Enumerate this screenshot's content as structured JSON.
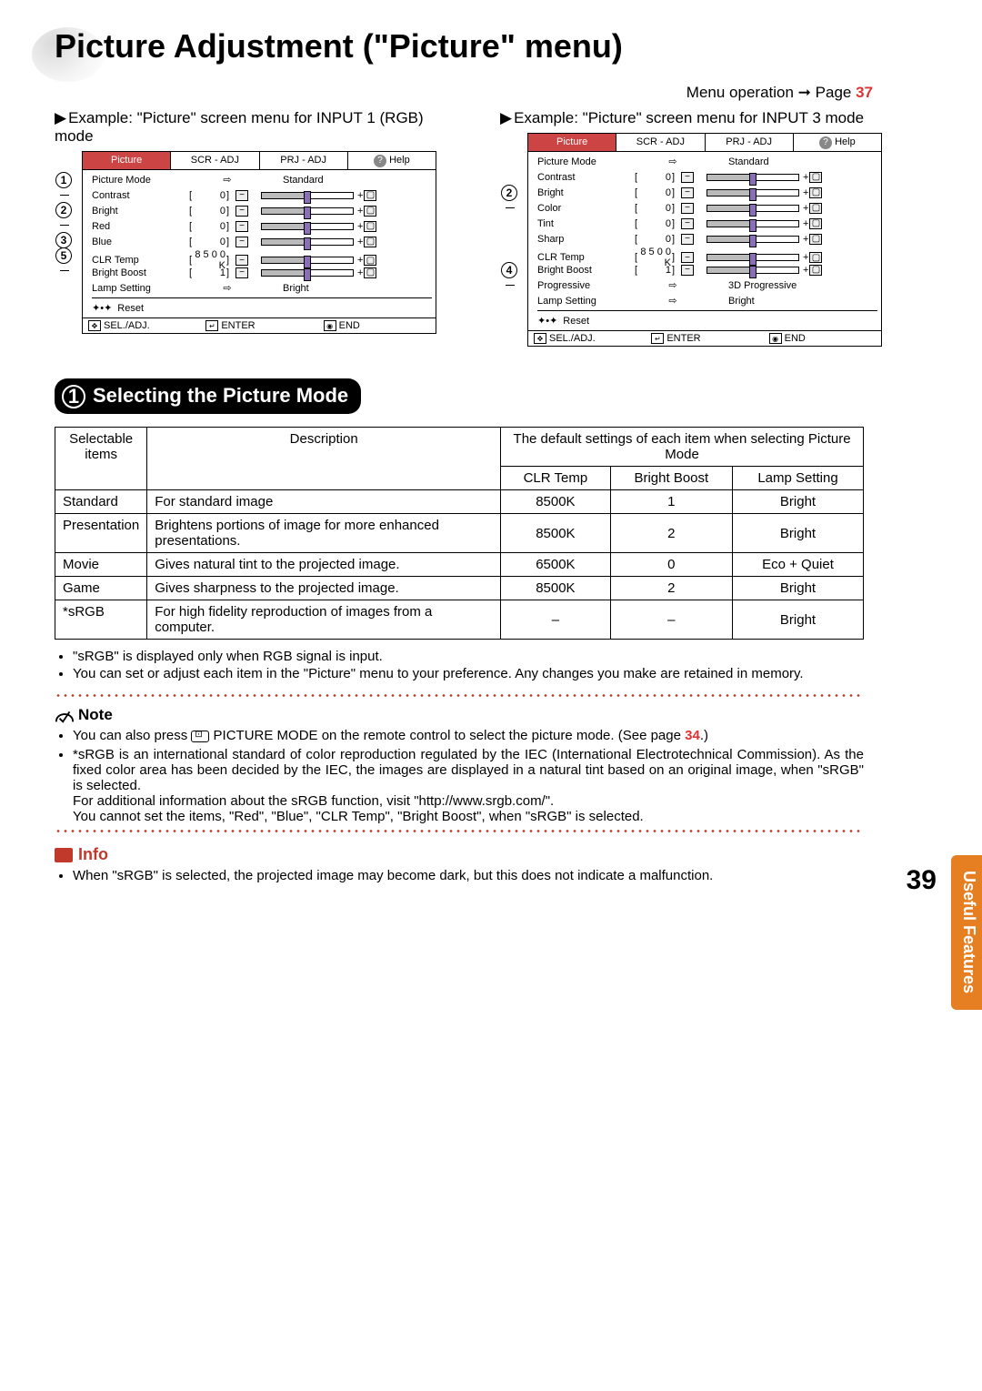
{
  "page": {
    "title": "Picture Adjustment (\"Picture\" menu)",
    "menu_op_prefix": "Menu operation ",
    "menu_op_arrow": "➞",
    "menu_op_page_label": " Page ",
    "menu_op_page_num": "37",
    "page_number": "39",
    "side_tab": "Useful Features"
  },
  "examples": {
    "left": {
      "heading": "Example:  \"Picture\" screen menu for INPUT 1 (RGB) mode",
      "callouts": [
        "1",
        "2",
        "3",
        "5"
      ],
      "tabs": {
        "active": "Picture",
        "t2": "SCR - ADJ",
        "t3": "PRJ - ADJ",
        "help": "Help"
      },
      "rows": [
        {
          "label": "Picture Mode",
          "type": "arrow",
          "value": "Standard"
        },
        {
          "label": "Contrast",
          "type": "slider",
          "val": "0"
        },
        {
          "label": "Bright",
          "type": "slider",
          "val": "0"
        },
        {
          "label": "Red",
          "type": "slider",
          "val": "0"
        },
        {
          "label": "Blue",
          "type": "slider",
          "val": "0"
        },
        {
          "label": "CLR Temp",
          "type": "slider",
          "val": "8 5 0 0 K"
        },
        {
          "label": "Bright Boost",
          "type": "slider",
          "val": "1"
        },
        {
          "label": "Lamp Setting",
          "type": "arrow",
          "value": "Bright"
        },
        {
          "label": "Reset",
          "type": "reset"
        }
      ],
      "footer": {
        "sel": "SEL./ADJ.",
        "enter": "ENTER",
        "end": "END"
      }
    },
    "right": {
      "heading": "Example:  \"Picture\" screen menu for INPUT 3 mode",
      "callouts": [
        "2",
        "4"
      ],
      "tabs": {
        "active": "Picture",
        "t2": "SCR - ADJ",
        "t3": "PRJ - ADJ",
        "help": "Help"
      },
      "rows": [
        {
          "label": "Picture Mode",
          "type": "arrow",
          "value": "Standard"
        },
        {
          "label": "Contrast",
          "type": "slider",
          "val": "0"
        },
        {
          "label": "Bright",
          "type": "slider",
          "val": "0"
        },
        {
          "label": "Color",
          "type": "slider",
          "val": "0"
        },
        {
          "label": "Tint",
          "type": "slider",
          "val": "0"
        },
        {
          "label": "Sharp",
          "type": "slider",
          "val": "0"
        },
        {
          "label": "CLR Temp",
          "type": "slider",
          "val": "8 5 0 0 K"
        },
        {
          "label": "Bright Boost",
          "type": "slider",
          "val": "1"
        },
        {
          "label": "Progressive",
          "type": "arrow",
          "value": "3D Progressive"
        },
        {
          "label": "Lamp Setting",
          "type": "arrow",
          "value": "Bright"
        },
        {
          "label": "Reset",
          "type": "reset"
        }
      ],
      "footer": {
        "sel": "SEL./ADJ.",
        "enter": "ENTER",
        "end": "END"
      }
    }
  },
  "section1": {
    "num": "1",
    "title": "Selecting the Picture Mode"
  },
  "table": {
    "head": {
      "c0a": "Selectable",
      "c0b": "items",
      "c1": "Description",
      "c2span": "The default settings of each item when selecting Picture Mode",
      "c2": "CLR Temp",
      "c3": "Bright Boost",
      "c4": "Lamp Setting"
    },
    "rows": [
      {
        "item": "Standard",
        "desc": "For standard image",
        "clr": "8500K",
        "bb": "1",
        "lamp": "Bright"
      },
      {
        "item": "Presentation",
        "desc": "Brightens portions of image for more enhanced presentations.",
        "clr": "8500K",
        "bb": "2",
        "lamp": "Bright"
      },
      {
        "item": "Movie",
        "desc": "Gives natural tint to the projected image.",
        "clr": "6500K",
        "bb": "0",
        "lamp": "Eco + Quiet"
      },
      {
        "item": "Game",
        "desc": "Gives sharpness to the projected image.",
        "clr": "8500K",
        "bb": "2",
        "lamp": "Bright"
      },
      {
        "item": "*sRGB",
        "desc": "For high fidelity reproduction of images from a computer.",
        "clr": "–",
        "bb": "–",
        "lamp": "Bright"
      }
    ]
  },
  "bullets_after_table": [
    "\"sRGB\" is displayed only when RGB signal is input.",
    "You can set or adjust each item in the \"Picture\" menu to your preference. Any changes you make are retained in memory."
  ],
  "note": {
    "label": "Note",
    "li1_a": "You can also press ",
    "li1_b": " PICTURE MODE on the remote control to select the picture mode. (See page ",
    "li1_page": "34",
    "li1_c": ".)",
    "li2": "*sRGB is an international standard of color reproduction regulated by the IEC (International Electrotechnical Commission). As the fixed color area has been decided by the IEC, the images are displayed in a natural tint based on an original image, when \"sRGB\" is selected.",
    "li2b": "For additional information about the sRGB function, visit \"http://www.srgb.com/\".",
    "li2c": "You cannot set the items, \"Red\", \"Blue\", \"CLR Temp\", \"Bright Boost\", when \"sRGB\" is selected."
  },
  "info": {
    "label": "Info",
    "text": "When \"sRGB\" is selected, the projected image may become dark, but this does not indicate a malfunction."
  }
}
